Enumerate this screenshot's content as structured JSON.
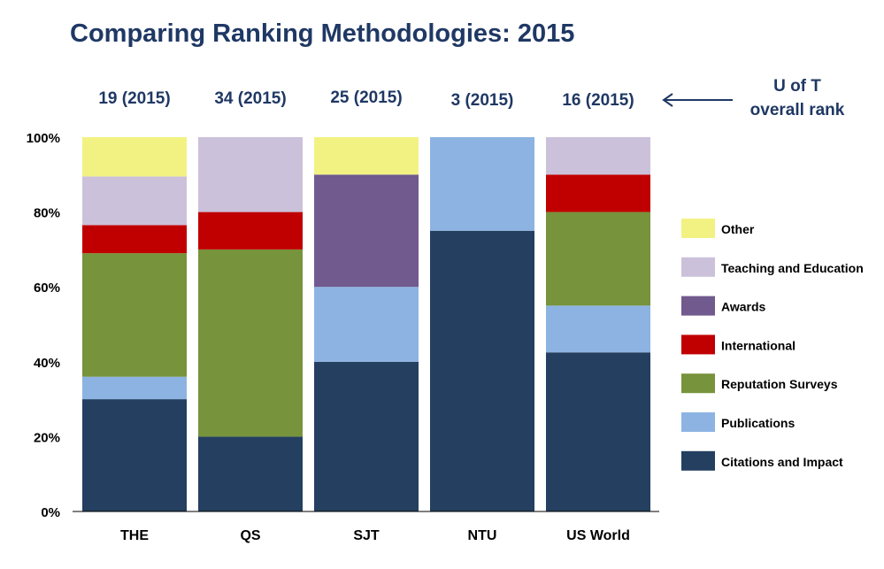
{
  "chart_data": {
    "type": "bar",
    "stacked": true,
    "title": "Comparing Ranking Methodologies: 2015",
    "categories": [
      "THE",
      "QS",
      "SJT",
      "NTU",
      "US World"
    ],
    "rank_labels": [
      "19 (2015)",
      "34 (2015)",
      "25 (2015)",
      "3 (2015)",
      "16 (2015)"
    ],
    "annotation": {
      "line1": "U of T",
      "line2": "overall rank"
    },
    "ylim": [
      0,
      100
    ],
    "yticks": [
      "0%",
      "20%",
      "40%",
      "60%",
      "80%",
      "100%"
    ],
    "legend_position": "right",
    "series": [
      {
        "name": "Citations and Impact",
        "color": "#243f60",
        "values": [
          30,
          20,
          40,
          75,
          42.5
        ]
      },
      {
        "name": "Publications",
        "color": "#8db3e2",
        "values": [
          6,
          0,
          20,
          25,
          12.5
        ]
      },
      {
        "name": "Reputation Surveys",
        "color": "#77933c",
        "values": [
          33,
          50,
          0,
          0,
          25
        ]
      },
      {
        "name": "International",
        "color": "#c00000",
        "values": [
          7.5,
          10,
          0,
          0,
          10
        ]
      },
      {
        "name": "Awards",
        "color": "#705a8e",
        "values": [
          0,
          0,
          30,
          0,
          0
        ]
      },
      {
        "name": "Teaching and Education",
        "color": "#ccc1da",
        "values": [
          13,
          20,
          0,
          0,
          10
        ]
      },
      {
        "name": "Other",
        "color": "#f2f283",
        "values": [
          10.5,
          0,
          10,
          0,
          0
        ]
      }
    ],
    "legend_order": [
      "Other",
      "Teaching and Education",
      "Awards",
      "International",
      "Reputation Surveys",
      "Publications",
      "Citations and Impact"
    ]
  }
}
